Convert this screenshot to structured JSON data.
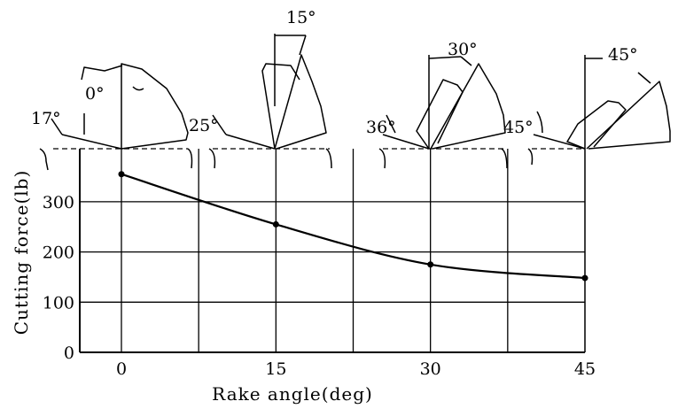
{
  "chart_data": {
    "type": "line",
    "xlabel": "Rake angle(deg)",
    "ylabel": "Cutting force(lb)",
    "xlim": [
      0,
      45
    ],
    "ylim": [
      0,
      350
    ],
    "x_ticks": [
      "0",
      "15",
      "30",
      "45"
    ],
    "y_ticks": [
      "0",
      "100",
      "200",
      "300"
    ],
    "grid": true,
    "series": [
      {
        "x": [
          0,
          15,
          30,
          45
        ],
        "y": [
          355,
          255,
          175,
          148
        ]
      }
    ],
    "tool_annotations": [
      {
        "rake": "0°",
        "shear": "17°"
      },
      {
        "rake": "15°",
        "shear": "25°"
      },
      {
        "rake": "30°",
        "shear": "36°"
      },
      {
        "rake": "45°",
        "shear": "45°"
      }
    ]
  }
}
